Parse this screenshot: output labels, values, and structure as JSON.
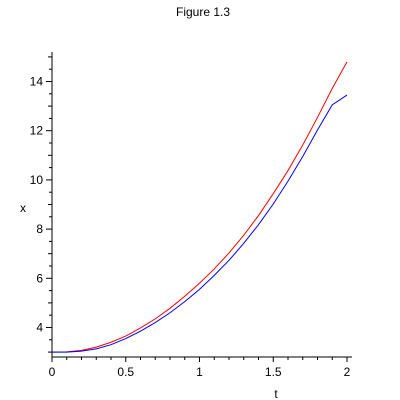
{
  "chart_data": {
    "type": "line",
    "title": "Figure 1.3",
    "xlabel": "t",
    "ylabel": "x",
    "xlim": [
      0,
      2
    ],
    "ylim": [
      2.8,
      15.2
    ],
    "grid": false,
    "x_ticks": [
      {
        "value": 0,
        "label": "0"
      },
      {
        "value": 0.5,
        "label": "0.5"
      },
      {
        "value": 1,
        "label": "1"
      },
      {
        "value": 1.5,
        "label": "1.5"
      },
      {
        "value": 2,
        "label": "2"
      }
    ],
    "y_ticks": [
      {
        "value": 4,
        "label": "4"
      },
      {
        "value": 6,
        "label": "6"
      },
      {
        "value": 8,
        "label": "8"
      },
      {
        "value": 10,
        "label": "10"
      },
      {
        "value": 12,
        "label": "12"
      },
      {
        "value": 14,
        "label": "14"
      }
    ],
    "x": [
      0,
      0.1,
      0.2,
      0.3,
      0.4,
      0.5,
      0.6,
      0.7,
      0.8,
      0.9,
      1.0,
      1.1,
      1.2,
      1.3,
      1.4,
      1.5,
      1.6,
      1.7,
      1.8,
      1.9,
      2.0
    ],
    "series": [
      {
        "color": "#ff0000",
        "values": [
          3.0,
          3.01,
          3.07,
          3.2,
          3.4,
          3.65,
          3.98,
          4.35,
          4.78,
          5.27,
          5.8,
          6.38,
          7.03,
          7.75,
          8.55,
          9.44,
          10.38,
          11.42,
          12.54,
          13.72,
          14.8
        ]
      },
      {
        "color": "#0000ff",
        "values": [
          3.0,
          3.0,
          3.04,
          3.13,
          3.3,
          3.55,
          3.85,
          4.2,
          4.6,
          5.05,
          5.55,
          6.12,
          6.73,
          7.42,
          8.18,
          9.02,
          9.95,
          10.95,
          12.03,
          13.05,
          13.45
        ]
      }
    ]
  }
}
